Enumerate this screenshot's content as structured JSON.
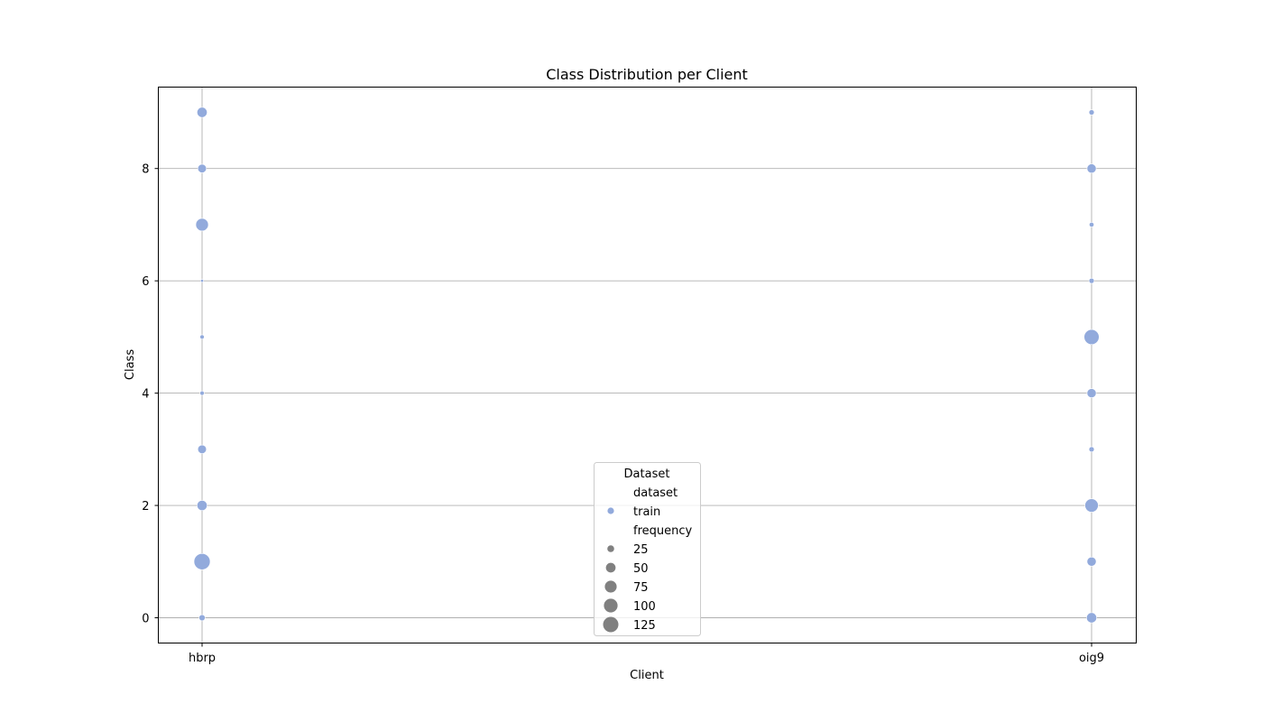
{
  "chart_data": {
    "type": "scatter",
    "title": "Class Distribution per Client",
    "xlabel": "Client",
    "ylabel": "Class",
    "categories": [
      "hbrp",
      "oig9"
    ],
    "ylim": [
      -0.45,
      9.45
    ],
    "yticks": [
      0,
      2,
      4,
      6,
      8
    ],
    "grid": true,
    "point_color": "#92aadc",
    "series": [
      {
        "name": "train",
        "points": [
          {
            "x": "hbrp",
            "y": 0,
            "frequency": 20
          },
          {
            "x": "hbrp",
            "y": 1,
            "frequency": 140
          },
          {
            "x": "hbrp",
            "y": 2,
            "frequency": 55
          },
          {
            "x": "hbrp",
            "y": 3,
            "frequency": 40
          },
          {
            "x": "hbrp",
            "y": 4,
            "frequency": 10
          },
          {
            "x": "hbrp",
            "y": 5,
            "frequency": 10
          },
          {
            "x": "hbrp",
            "y": 6,
            "frequency": 5
          },
          {
            "x": "hbrp",
            "y": 7,
            "frequency": 85
          },
          {
            "x": "hbrp",
            "y": 8,
            "frequency": 40
          },
          {
            "x": "hbrp",
            "y": 9,
            "frequency": 55
          },
          {
            "x": "oig9",
            "y": 0,
            "frequency": 55
          },
          {
            "x": "oig9",
            "y": 1,
            "frequency": 45
          },
          {
            "x": "oig9",
            "y": 2,
            "frequency": 95
          },
          {
            "x": "oig9",
            "y": 3,
            "frequency": 15
          },
          {
            "x": "oig9",
            "y": 4,
            "frequency": 45
          },
          {
            "x": "oig9",
            "y": 5,
            "frequency": 120
          },
          {
            "x": "oig9",
            "y": 6,
            "frequency": 15
          },
          {
            "x": "oig9",
            "y": 7,
            "frequency": 12
          },
          {
            "x": "oig9",
            "y": 8,
            "frequency": 45
          },
          {
            "x": "oig9",
            "y": 9,
            "frequency": 15
          }
        ]
      }
    ],
    "legend": {
      "title": "Dataset",
      "placement": "lower-center",
      "hue_title": "dataset",
      "hue_entries": [
        "train"
      ],
      "size_title": "frequency",
      "size_entries": [
        {
          "label": "25",
          "value": 25
        },
        {
          "label": "50",
          "value": 50
        },
        {
          "label": "75",
          "value": 75
        },
        {
          "label": "100",
          "value": 100
        },
        {
          "label": "125",
          "value": 125
        }
      ],
      "size_marker_color": "#808080"
    }
  }
}
